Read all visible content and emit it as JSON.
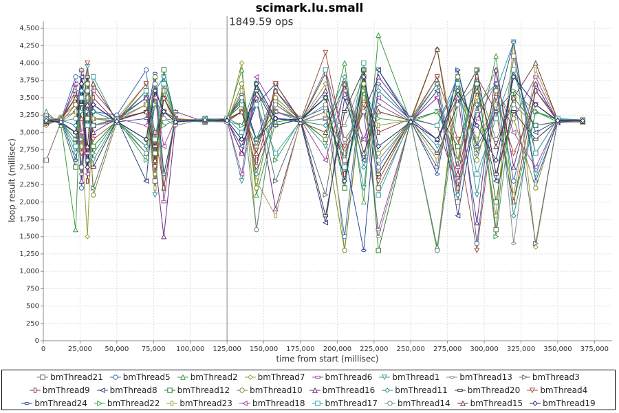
{
  "chart_data": {
    "type": "line",
    "title": "scimark.lu.small",
    "xlabel": "time from start (millisec)",
    "ylabel": "loop result (millisec)",
    "annotation": {
      "text": "1849.59 ops",
      "x": 125000
    },
    "grid": true,
    "legend": "bottom",
    "xlim": [
      0,
      387000
    ],
    "ylim": [
      0,
      4600
    ],
    "xticks": [
      0,
      {
        "value": 25000,
        "label": "25,000"
      },
      {
        "value": 50000,
        "label": "50,000"
      },
      {
        "value": 75000,
        "label": "75,000"
      },
      {
        "value": 100000,
        "label": "100,000"
      },
      {
        "value": 125000,
        "label": "125,000"
      },
      {
        "value": 150000,
        "label": "150,000"
      },
      {
        "value": 175000,
        "label": "175,000"
      },
      {
        "value": 200000,
        "label": "200,000"
      },
      {
        "value": 225000,
        "label": "225,000"
      },
      {
        "value": 250000,
        "label": "250,000"
      },
      {
        "value": 275000,
        "label": "275,000"
      },
      {
        "value": 300000,
        "label": "300,000"
      },
      {
        "value": 325000,
        "label": "325,000"
      },
      {
        "value": 350000,
        "label": "350,000"
      },
      {
        "value": 375000,
        "label": "375,000"
      }
    ],
    "yticks": [
      0,
      250,
      500,
      750,
      {
        "value": 1000,
        "label": "1,000"
      },
      {
        "value": 1250,
        "label": "1,250"
      },
      {
        "value": 1500,
        "label": "1,500"
      },
      {
        "value": 1750,
        "label": "1,750"
      },
      {
        "value": 2000,
        "label": "2,000"
      },
      {
        "value": 2250,
        "label": "2,250"
      },
      {
        "value": 2500,
        "label": "2,500"
      },
      {
        "value": 2750,
        "label": "2,750"
      },
      {
        "value": 3000,
        "label": "3,000"
      },
      {
        "value": 3250,
        "label": "3,250"
      },
      {
        "value": 3500,
        "label": "3,500"
      },
      {
        "value": 3750,
        "label": "3,750"
      },
      {
        "value": 4000,
        "label": "4,000"
      },
      {
        "value": 4250,
        "label": "4,250"
      },
      {
        "value": 4500,
        "label": "4,500"
      }
    ],
    "x": [
      2000,
      12000,
      22000,
      26000,
      30000,
      34000,
      50000,
      70000,
      76000,
      82000,
      90000,
      110000,
      125000,
      135000,
      145000,
      158000,
      175000,
      192000,
      205000,
      218000,
      228000,
      250000,
      268000,
      282000,
      295000,
      308000,
      320000,
      335000,
      350000,
      367000
    ],
    "series": [
      {
        "name": "bmThread21",
        "color": "#7a6a5e",
        "marker": "square",
        "values": [
          2600,
          3150,
          3400,
          2500,
          3700,
          3100,
          3180,
          3500,
          2300,
          3600,
          3150,
          3200,
          3170,
          3300,
          2800,
          3450,
          3150,
          3200,
          2600,
          3800,
          2200,
          3150,
          3700,
          2000,
          3900,
          1600,
          4100,
          2700,
          3200,
          3150
        ]
      },
      {
        "name": "bmThread5",
        "color": "#3a6ab0",
        "marker": "circle",
        "values": [
          3200,
          3180,
          3800,
          2200,
          3500,
          3300,
          3250,
          3900,
          2700,
          3300,
          3200,
          3150,
          3200,
          3500,
          2900,
          3600,
          3200,
          3350,
          1500,
          3900,
          2500,
          3200,
          3100,
          3800,
          1400,
          3700,
          2300,
          3600,
          3200,
          3180
        ]
      },
      {
        "name": "bmThread2",
        "color": "#3a9a3a",
        "marker": "triangle-up",
        "values": [
          3300,
          3100,
          1600,
          3900,
          2600,
          3200,
          3150,
          2700,
          3800,
          2200,
          3300,
          3150,
          3200,
          3900,
          2100,
          3150,
          3200,
          2900,
          4000,
          2000,
          4400,
          3150,
          1350,
          3600,
          2800,
          4100,
          2000,
          3300,
          3150,
          3150
        ]
      },
      {
        "name": "bmThread7",
        "color": "#9a9a3a",
        "marker": "diamond",
        "values": [
          3100,
          3200,
          3500,
          2900,
          1500,
          3600,
          3200,
          3700,
          2400,
          3500,
          3100,
          3200,
          3150,
          4000,
          1600,
          3400,
          3150,
          3700,
          1300,
          3800,
          2400,
          3200,
          4200,
          2600,
          3500,
          1800,
          4300,
          1350,
          3180,
          3150
        ]
      },
      {
        "name": "bmThread6",
        "color": "#9a4a9a",
        "marker": "rect-h",
        "values": [
          3250,
          3150,
          3000,
          3900,
          2700,
          3200,
          3200,
          3300,
          3700,
          2000,
          3300,
          3150,
          3180,
          2700,
          3600,
          3200,
          3150,
          3900,
          2900,
          3300,
          1600,
          3150,
          3500,
          2500,
          3900,
          2400,
          3200,
          3800,
          3150,
          3160
        ]
      },
      {
        "name": "bmThread1",
        "color": "#3a9aa0",
        "marker": "triangle-down",
        "values": [
          3150,
          3200,
          2700,
          3500,
          3950,
          2600,
          3180,
          3500,
          2100,
          3800,
          3200,
          3150,
          3180,
          2300,
          3700,
          3100,
          3200,
          2800,
          3700,
          2200,
          3900,
          3200,
          2800,
          3800,
          2100,
          3600,
          4300,
          2400,
          3200,
          3150
        ]
      },
      {
        "name": "bmThread13",
        "color": "#8a8a8a",
        "marker": "ellipse-h",
        "values": [
          3200,
          3150,
          3300,
          2400,
          3600,
          3100,
          3150,
          2800,
          3500,
          3200,
          3100,
          3200,
          3150,
          3300,
          2800,
          3600,
          3150,
          3200,
          3100,
          3800,
          1500,
          3150,
          3800,
          2200,
          3300,
          3900,
          1400,
          3700,
          3150,
          3170
        ]
      },
      {
        "name": "bmThread3",
        "color": "#5a6a7a",
        "marker": "triangle-right",
        "values": [
          3120,
          3180,
          3600,
          2900,
          3300,
          2200,
          3200,
          3400,
          2500,
          3700,
          3150,
          3180,
          3200,
          3100,
          3500,
          2300,
          3180,
          2100,
          3700,
          2900,
          3400,
          3150,
          2500,
          3900,
          2700,
          3300,
          3600,
          1400,
          3180,
          3150
        ]
      },
      {
        "name": "bmThread9",
        "color": "#8a3a3a",
        "marker": "rect-v",
        "values": [
          3180,
          3150,
          2900,
          3700,
          2300,
          3500,
          3140,
          3600,
          3000,
          2200,
          3200,
          3160,
          3180,
          3500,
          2600,
          3200,
          3150,
          3850,
          2400,
          3500,
          3000,
          3200,
          3100,
          2200,
          3800,
          3300,
          2000,
          3600,
          3160,
          3150
        ]
      },
      {
        "name": "bmThread8",
        "color": "#2a3a7a",
        "marker": "triangle-left",
        "values": [
          3140,
          3200,
          3300,
          3800,
          2600,
          3100,
          3200,
          2300,
          3600,
          3300,
          3150,
          3200,
          3160,
          2800,
          3400,
          3700,
          3150,
          1700,
          3500,
          2600,
          3900,
          3150,
          3600,
          1800,
          3400,
          2300,
          3900,
          3000,
          3170,
          3160
        ]
      },
      {
        "name": "bmThread12",
        "color": "#2a7a2a",
        "marker": "square",
        "values": [
          3200,
          3160,
          2500,
          3500,
          3200,
          2800,
          3170,
          3600,
          2700,
          3900,
          3180,
          3150,
          3200,
          3400,
          2900,
          3300,
          3200,
          3500,
          2200,
          3900,
          1300,
          3180,
          3300,
          2800,
          3700,
          2000,
          3500,
          3100,
          3150,
          3180
        ]
      },
      {
        "name": "bmThread10",
        "color": "#7a8a2a",
        "marker": "circle",
        "values": [
          3160,
          3220,
          3400,
          2800,
          3700,
          2100,
          3150,
          2900,
          3800,
          2400,
          3200,
          3170,
          3150,
          3700,
          2200,
          3500,
          3180,
          2900,
          1300,
          3700,
          2700,
          3160,
          1300,
          3800,
          2600,
          3600,
          3200,
          2200,
          3200,
          3150
        ]
      },
      {
        "name": "bmThread16",
        "color": "#6a2a7a",
        "marker": "triangle-up",
        "values": [
          3170,
          3140,
          3700,
          2300,
          3400,
          3000,
          3200,
          3500,
          2600,
          1500,
          3150,
          3190,
          3180,
          2700,
          3500,
          1900,
          3150,
          3600,
          2700,
          3300,
          3800,
          3200,
          2900,
          3500,
          1700,
          3900,
          2500,
          3700,
          3140,
          3170
        ]
      },
      {
        "name": "bmThread11",
        "color": "#2a8a8a",
        "marker": "diamond",
        "values": [
          3150,
          3180,
          3100,
          3600,
          2600,
          3300,
          3160,
          2800,
          3600,
          3800,
          3170,
          3150,
          3200,
          3450,
          2400,
          3300,
          3160,
          3100,
          3800,
          2500,
          3600,
          3180,
          3700,
          2100,
          3400,
          3700,
          1800,
          3300,
          3180,
          3160
        ]
      },
      {
        "name": "bmThread20",
        "color": "#3a3a3a",
        "marker": "rect-h",
        "values": [
          3190,
          3130,
          3000,
          3400,
          3800,
          2500,
          3180,
          3300,
          2800,
          3500,
          3160,
          3200,
          3170,
          2900,
          3600,
          3100,
          3190,
          1800,
          3300,
          3900,
          2400,
          3170,
          2700,
          3400,
          3900,
          2400,
          3300,
          2900,
          3170,
          3180
        ]
      },
      {
        "name": "bmThread4",
        "color": "#a04a3a",
        "marker": "triangle-down",
        "values": [
          3130,
          3170,
          3500,
          2700,
          4000,
          2900,
          3160,
          3700,
          2500,
          3300,
          3190,
          3160,
          3150,
          3300,
          2500,
          3700,
          3170,
          4150,
          2800,
          3400,
          2300,
          3190,
          3800,
          2900,
          1300,
          3500,
          2700,
          3400,
          3160,
          3150
        ]
      },
      {
        "name": "bmThread24",
        "color": "#2a4a9a",
        "marker": "ellipse-h",
        "values": [
          3170,
          3190,
          2600,
          3700,
          3100,
          3400,
          3150,
          3200,
          3850,
          2400,
          3170,
          3180,
          3190,
          3550,
          2900,
          3200,
          3150,
          3300,
          2700,
          1300,
          3700,
          3170,
          2400,
          3900,
          2800,
          3300,
          4300,
          2300,
          3150,
          3170
        ]
      },
      {
        "name": "bmThread22",
        "color": "#3aa05a",
        "marker": "triangle-right",
        "values": [
          3210,
          3150,
          2900,
          3300,
          3600,
          2700,
          3190,
          2600,
          3400,
          3100,
          3180,
          3170,
          3160,
          3100,
          3700,
          2600,
          3180,
          3500,
          2300,
          3600,
          3200,
          3150,
          3300,
          2600,
          3900,
          1500,
          3600,
          3300,
          3190,
          3160
        ]
      },
      {
        "name": "bmThread23",
        "color": "#a0a04a",
        "marker": "rect-v",
        "values": [
          3150,
          3200,
          3300,
          2800,
          3500,
          3200,
          3170,
          3400,
          2200,
          3600,
          3150,
          3200,
          3180,
          3600,
          2300,
          1800,
          3160,
          3300,
          2700,
          3500,
          3100,
          3180,
          2600,
          3700,
          2900,
          3400,
          2100,
          3900,
          3180,
          3150
        ]
      },
      {
        "name": "bmThread18",
        "color": "#a04aa0",
        "marker": "triangle-left",
        "values": [
          3180,
          3160,
          3700,
          3000,
          2400,
          3600,
          3200,
          3100,
          3500,
          2800,
          3190,
          3150,
          3170,
          2400,
          3800,
          3300,
          3190,
          2600,
          3600,
          2900,
          3500,
          3160,
          3500,
          2300,
          3200,
          3700,
          3000,
          2500,
          3170,
          3160
        ]
      },
      {
        "name": "bmThread17",
        "color": "#3aa0a0",
        "marker": "square",
        "values": [
          3160,
          3180,
          2800,
          3500,
          3100,
          3800,
          3150,
          3600,
          2900,
          3700,
          3160,
          3190,
          3200,
          3000,
          3400,
          2700,
          3160,
          3900,
          2500,
          4000,
          2100,
          3190,
          3100,
          3700,
          2400,
          3200,
          3900,
          2700,
          3200,
          3170
        ]
      },
      {
        "name": "bmThread14",
        "color": "#6a8a8a",
        "marker": "circle",
        "values": [
          3190,
          3160,
          3200,
          2500,
          3600,
          3100,
          3190,
          2700,
          3700,
          3200,
          3170,
          3160,
          3150,
          3500,
          1600,
          3400,
          3170,
          3400,
          2900,
          3300,
          2600,
          3160,
          1300,
          3400,
          3700,
          2900,
          3400,
          3100,
          3160,
          3180
        ]
      },
      {
        "name": "bmThread15",
        "color": "#6a3a2a",
        "marker": "triangle-up",
        "values": [
          3160,
          3200,
          3500,
          3200,
          2800,
          3700,
          3170,
          3300,
          2600,
          3500,
          3180,
          3170,
          3190,
          3300,
          2700,
          3600,
          3150,
          3000,
          3700,
          2700,
          3300,
          3170,
          4200,
          2400,
          3600,
          2800,
          3500,
          4000,
          3180,
          3160
        ]
      },
      {
        "name": "bmThread19",
        "color": "#1a2a6a",
        "marker": "diamond",
        "values": [
          3170,
          3150,
          3000,
          3700,
          2500,
          3400,
          3160,
          2900,
          3600,
          3300,
          3150,
          3180,
          3170,
          2900,
          3700,
          3200,
          3180,
          3500,
          2300,
          3800,
          2800,
          3150,
          2900,
          3600,
          3100,
          2600,
          3800,
          3400,
          3170,
          3170
        ]
      }
    ]
  }
}
